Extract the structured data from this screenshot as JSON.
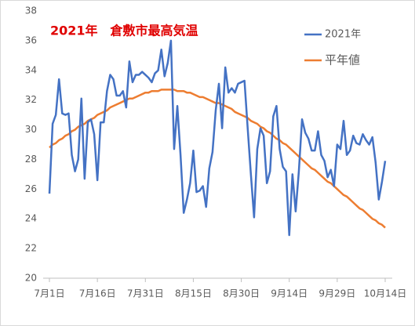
{
  "chart_data": {
    "type": "line",
    "title": "2021年　倉敷市最高気温",
    "categories": [
      "7月1日",
      null,
      null,
      null,
      null,
      null,
      null,
      null,
      null,
      null,
      null,
      null,
      null,
      null,
      null,
      "7月16日",
      null,
      null,
      null,
      null,
      null,
      null,
      null,
      null,
      null,
      null,
      null,
      null,
      null,
      null,
      "7月31日",
      null,
      null,
      null,
      null,
      null,
      null,
      null,
      null,
      null,
      null,
      null,
      null,
      null,
      null,
      "8月15日",
      null,
      null,
      null,
      null,
      null,
      null,
      null,
      null,
      null,
      null,
      null,
      null,
      null,
      null,
      "8月30日",
      null,
      null,
      null,
      null,
      null,
      null,
      null,
      null,
      null,
      null,
      null,
      null,
      null,
      null,
      "9月14日",
      null,
      null,
      null,
      null,
      null,
      null,
      null,
      null,
      null,
      null,
      null,
      null,
      null,
      null,
      "9月29日",
      null,
      null,
      null,
      null,
      null,
      null,
      null,
      null,
      null,
      null,
      null,
      null,
      null,
      null,
      "10月14日"
    ],
    "series": [
      {
        "name": "2021年",
        "color": "#4472c4",
        "values": [
          25.7,
          30.4,
          31.0,
          33.4,
          31.1,
          31.0,
          31.1,
          28.3,
          27.2,
          28.0,
          32.1,
          26.7,
          30.5,
          30.7,
          29.7,
          26.6,
          30.5,
          30.5,
          32.6,
          33.7,
          33.4,
          32.3,
          32.3,
          32.6,
          31.5,
          34.6,
          33.2,
          33.7,
          33.7,
          33.9,
          33.7,
          33.5,
          33.2,
          33.8,
          34.0,
          35.4,
          33.6,
          34.5,
          36.0,
          28.7,
          31.6,
          28.3,
          24.4,
          25.3,
          26.4,
          28.6,
          25.8,
          25.9,
          26.2,
          24.8,
          27.4,
          28.5,
          31.3,
          33.1,
          30.1,
          34.2,
          32.5,
          32.8,
          32.5,
          33.1,
          33.2,
          33.3,
          30.1,
          27.0,
          24.1,
          28.7,
          30.1,
          29.6,
          26.4,
          27.2,
          30.9,
          31.6,
          28.7,
          27.5,
          27.2,
          22.9,
          27.0,
          24.5,
          27.2,
          30.7,
          29.8,
          29.4,
          28.6,
          28.6,
          29.9,
          28.3,
          27.9,
          26.8,
          27.3,
          26.2,
          29.0,
          28.7,
          30.6,
          28.3,
          28.6,
          29.6,
          29.1,
          29.0,
          29.7,
          29.3,
          29.0,
          29.5,
          27.8,
          25.3,
          26.5,
          27.9
        ]
      },
      {
        "name": "平年値",
        "color": "#ed7d31",
        "values": [
          28.8,
          29.0,
          29.1,
          29.3,
          29.4,
          29.6,
          29.7,
          29.9,
          30.0,
          30.2,
          30.3,
          30.4,
          30.6,
          30.7,
          30.8,
          31.0,
          31.1,
          31.2,
          31.3,
          31.5,
          31.6,
          31.7,
          31.8,
          31.9,
          32.0,
          32.1,
          32.1,
          32.2,
          32.3,
          32.4,
          32.5,
          32.5,
          32.6,
          32.6,
          32.6,
          32.7,
          32.7,
          32.7,
          32.7,
          32.7,
          32.6,
          32.6,
          32.6,
          32.5,
          32.5,
          32.4,
          32.3,
          32.2,
          32.2,
          32.1,
          32.0,
          31.9,
          31.8,
          31.8,
          31.7,
          31.6,
          31.5,
          31.4,
          31.2,
          31.1,
          31.0,
          30.9,
          30.8,
          30.6,
          30.5,
          30.4,
          30.2,
          30.1,
          29.9,
          29.8,
          29.6,
          29.4,
          29.3,
          29.1,
          29.0,
          28.8,
          28.6,
          28.4,
          28.2,
          28.0,
          27.8,
          27.6,
          27.4,
          27.3,
          27.1,
          26.9,
          26.7,
          26.5,
          26.4,
          26.2,
          26.0,
          25.8,
          25.6,
          25.5,
          25.3,
          25.1,
          24.9,
          24.7,
          24.6,
          24.4,
          24.2,
          24.0,
          23.9,
          23.7,
          23.6,
          23.4
        ]
      }
    ],
    "ylim": [
      20,
      38
    ],
    "yticks": [
      20,
      22,
      24,
      26,
      28,
      30,
      32,
      34,
      36,
      38
    ],
    "legend": "top-right"
  }
}
